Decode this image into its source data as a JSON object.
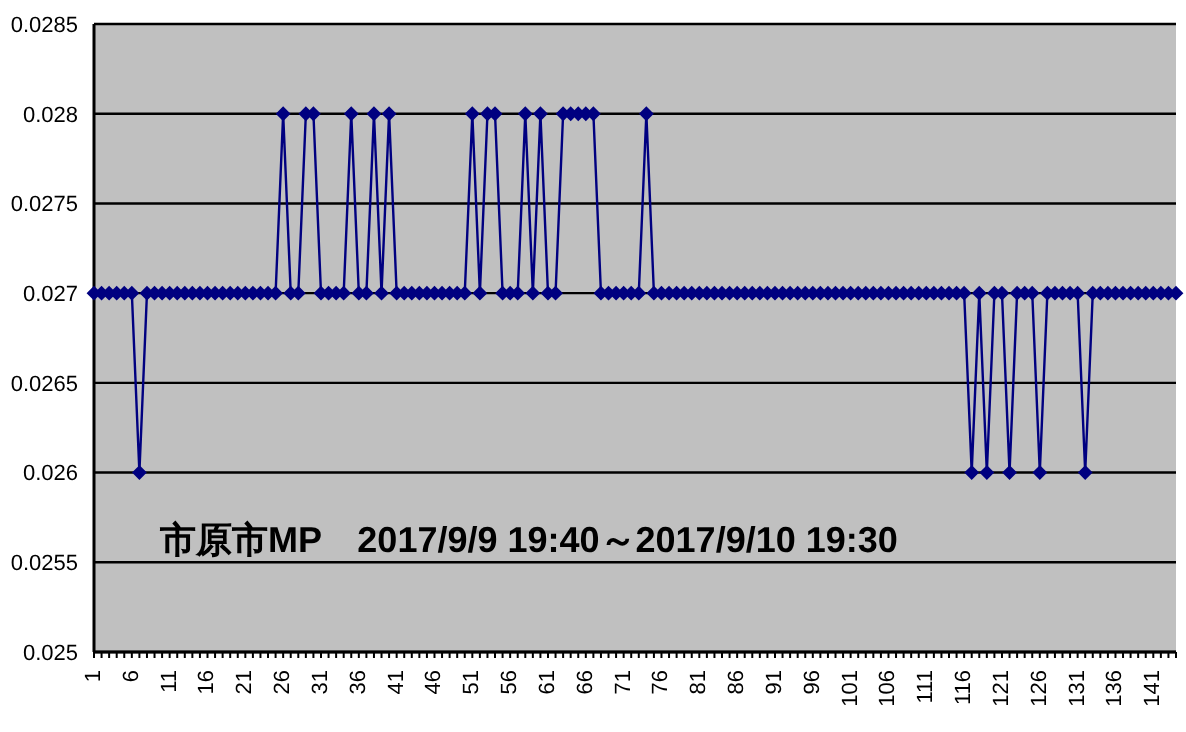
{
  "chart_data": {
    "type": "line",
    "annotations": [
      "市原市MP　2017/9/9 19:40～2017/9/10 19:30"
    ],
    "categories": [
      "1",
      null,
      null,
      null,
      null,
      "6",
      null,
      null,
      null,
      null,
      "11",
      null,
      null,
      null,
      null,
      "16",
      null,
      null,
      null,
      null,
      "21",
      null,
      null,
      null,
      null,
      "26",
      null,
      null,
      null,
      null,
      "31",
      null,
      null,
      null,
      null,
      "36",
      null,
      null,
      null,
      null,
      "41",
      null,
      null,
      null,
      null,
      "46",
      null,
      null,
      null,
      null,
      "51",
      null,
      null,
      null,
      null,
      "56",
      null,
      null,
      null,
      null,
      "61",
      null,
      null,
      null,
      null,
      "66",
      null,
      null,
      null,
      null,
      "71",
      null,
      null,
      null,
      null,
      "76",
      null,
      null,
      null,
      null,
      "81",
      null,
      null,
      null,
      null,
      "86",
      null,
      null,
      null,
      null,
      "91",
      null,
      null,
      null,
      null,
      "96",
      null,
      null,
      null,
      null,
      "101",
      null,
      null,
      null,
      null,
      "106",
      null,
      null,
      null,
      null,
      "111",
      null,
      null,
      null,
      null,
      "116",
      null,
      null,
      null,
      null,
      "121",
      null,
      null,
      null,
      null,
      "126",
      null,
      null,
      null,
      null,
      "131",
      null,
      null,
      null,
      null,
      "136",
      null,
      null,
      null,
      null,
      "141",
      null,
      null,
      null
    ],
    "series": [
      {
        "color": "#000080",
        "values": [
          0.027,
          0.027,
          0.027,
          0.027,
          0.027,
          0.027,
          0.026,
          0.027,
          0.027,
          0.027,
          0.027,
          0.027,
          0.027,
          0.027,
          0.027,
          0.027,
          0.027,
          0.027,
          0.027,
          0.027,
          0.027,
          0.027,
          0.027,
          0.027,
          0.027,
          0.028,
          0.027,
          0.027,
          0.028,
          0.028,
          0.027,
          0.027,
          0.027,
          0.027,
          0.028,
          0.027,
          0.027,
          0.028,
          0.027,
          0.028,
          0.027,
          0.027,
          0.027,
          0.027,
          0.027,
          0.027,
          0.027,
          0.027,
          0.027,
          0.027,
          0.028,
          0.027,
          0.028,
          0.028,
          0.027,
          0.027,
          0.027,
          0.028,
          0.027,
          0.028,
          0.027,
          0.027,
          0.028,
          0.028,
          0.028,
          0.028,
          0.028,
          0.027,
          0.027,
          0.027,
          0.027,
          0.027,
          0.027,
          0.028,
          0.027,
          0.027,
          0.027,
          0.027,
          0.027,
          0.027,
          0.027,
          0.027,
          0.027,
          0.027,
          0.027,
          0.027,
          0.027,
          0.027,
          0.027,
          0.027,
          0.027,
          0.027,
          0.027,
          0.027,
          0.027,
          0.027,
          0.027,
          0.027,
          0.027,
          0.027,
          0.027,
          0.027,
          0.027,
          0.027,
          0.027,
          0.027,
          0.027,
          0.027,
          0.027,
          0.027,
          0.027,
          0.027,
          0.027,
          0.027,
          0.027,
          0.027,
          0.026,
          0.027,
          0.026,
          0.027,
          0.027,
          0.026,
          0.027,
          0.027,
          0.027,
          0.026,
          0.027,
          0.027,
          0.027,
          0.027,
          0.027,
          0.026,
          0.027,
          0.027,
          0.027,
          0.027,
          0.027,
          0.027,
          0.027,
          0.027,
          0.027,
          0.027,
          0.027,
          0.027
        ]
      }
    ],
    "ylim": [
      0.025,
      0.0285
    ],
    "yticks": [
      0.025,
      0.0255,
      0.026,
      0.0265,
      0.027,
      0.0275,
      0.028,
      0.0285
    ],
    "grid": "y",
    "marker": "diamond",
    "line_style": "solid"
  }
}
